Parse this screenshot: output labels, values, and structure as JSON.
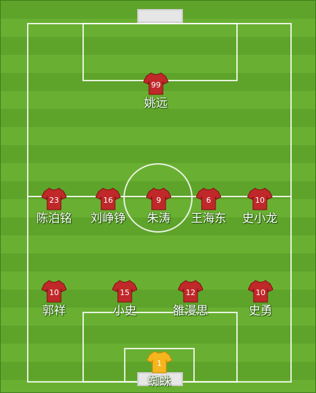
{
  "colors": {
    "outfield_shirt": "#c0282a",
    "outfield_shirt_trim": "#e8b800",
    "goalkeeper_shirt": "#f5b51e"
  },
  "players": [
    {
      "name": "姚远",
      "number": "99",
      "role": "outfield"
    },
    {
      "name": "陈泊铭",
      "number": "23",
      "role": "outfield"
    },
    {
      "name": "刘峥铮",
      "number": "16",
      "role": "outfield"
    },
    {
      "name": "朱涛",
      "number": "9",
      "role": "outfield"
    },
    {
      "name": "王海东",
      "number": "6",
      "role": "outfield"
    },
    {
      "name": "史小龙",
      "number": "10",
      "role": "outfield"
    },
    {
      "name": "郭祥",
      "number": "10",
      "role": "outfield"
    },
    {
      "name": "小史",
      "number": "15",
      "role": "outfield"
    },
    {
      "name": "雒漫思",
      "number": "12",
      "role": "outfield"
    },
    {
      "name": "史勇",
      "number": "10",
      "role": "outfield"
    },
    {
      "name": "蜘蛛",
      "number": "1",
      "role": "goalkeeper"
    }
  ]
}
